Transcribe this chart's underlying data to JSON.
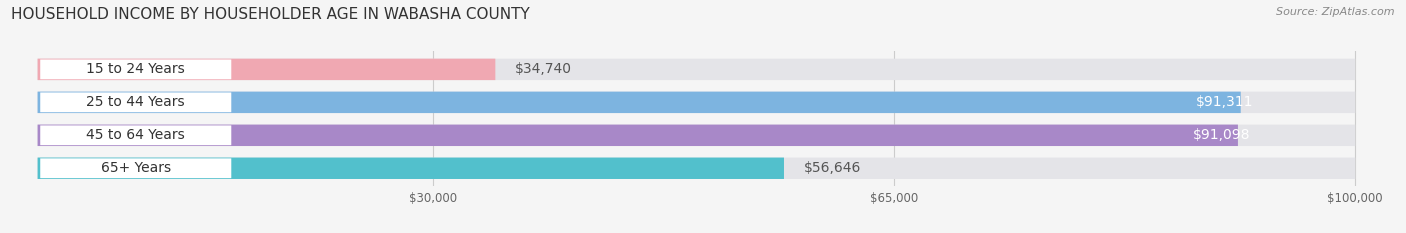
{
  "title": "HOUSEHOLD INCOME BY HOUSEHOLDER AGE IN WABASHA COUNTY",
  "source": "Source: ZipAtlas.com",
  "categories": [
    "15 to 24 Years",
    "25 to 44 Years",
    "45 to 64 Years",
    "65+ Years"
  ],
  "values": [
    34740,
    91311,
    91098,
    56646
  ],
  "bar_colors": [
    "#f0a8b2",
    "#7db4e0",
    "#a888c8",
    "#52c0cc"
  ],
  "value_labels": [
    "$34,740",
    "$91,311",
    "$91,098",
    "$56,646"
  ],
  "value_inside": [
    false,
    true,
    true,
    false
  ],
  "xlim_min": 0,
  "xlim_max": 100000,
  "xticks": [
    30000,
    65000,
    100000
  ],
  "xtick_labels": [
    "$30,000",
    "$65,000",
    "$100,000"
  ],
  "background_color": "#f5f5f5",
  "bar_bg_color": "#e4e4e8",
  "title_fontsize": 11,
  "source_fontsize": 8,
  "label_fontsize": 10,
  "value_fontsize": 10,
  "bar_height": 0.65,
  "figsize": [
    14.06,
    2.33
  ],
  "dpi": 100
}
